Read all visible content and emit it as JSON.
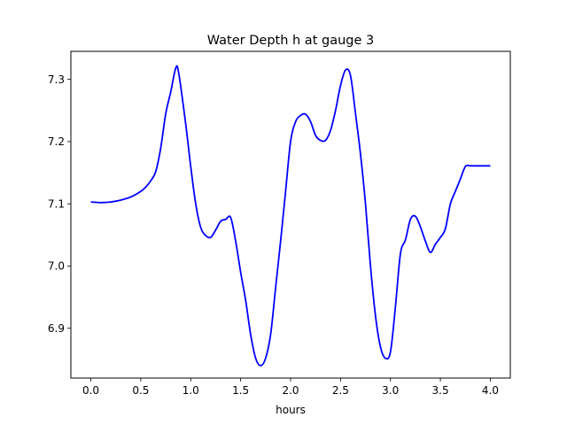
{
  "chart_data": {
    "type": "line",
    "title": "Water Depth h at gauge 3",
    "xlabel": "hours",
    "ylabel": "",
    "xlim": [
      -0.2,
      4.2
    ],
    "ylim": [
      6.82,
      7.345
    ],
    "xticks": [
      0.0,
      0.5,
      1.0,
      1.5,
      2.0,
      2.5,
      3.0,
      3.5,
      4.0
    ],
    "xtick_labels": [
      "0.0",
      "0.5",
      "1.0",
      "1.5",
      "2.0",
      "2.5",
      "3.0",
      "3.5",
      "4.0"
    ],
    "yticks": [
      6.9,
      7.0,
      7.1,
      7.2,
      7.3
    ],
    "ytick_labels": [
      "6.9",
      "7.0",
      "7.1",
      "7.2",
      "7.3"
    ],
    "grid": false,
    "series": [
      {
        "color": "#0000ff",
        "x": [
          0.0,
          0.1,
          0.2,
          0.3,
          0.4,
          0.5,
          0.55,
          0.6,
          0.65,
          0.7,
          0.75,
          0.8,
          0.85,
          0.88,
          0.95,
          1.0,
          1.05,
          1.1,
          1.15,
          1.2,
          1.25,
          1.3,
          1.35,
          1.4,
          1.45,
          1.5,
          1.55,
          1.6,
          1.65,
          1.7,
          1.75,
          1.8,
          1.85,
          1.9,
          1.95,
          2.0,
          2.05,
          2.1,
          2.15,
          2.2,
          2.25,
          2.3,
          2.35,
          2.4,
          2.45,
          2.5,
          2.55,
          2.6,
          2.65,
          2.7,
          2.75,
          2.8,
          2.85,
          2.9,
          2.95,
          3.0,
          3.05,
          3.1,
          3.15,
          3.2,
          3.25,
          3.3,
          3.35,
          3.4,
          3.45,
          3.5,
          3.55,
          3.6,
          3.65,
          3.7,
          3.75,
          3.8,
          3.85,
          3.9,
          3.95,
          4.0
        ],
        "values": [
          7.103,
          7.102,
          7.103,
          7.106,
          7.111,
          7.12,
          7.127,
          7.137,
          7.152,
          7.19,
          7.245,
          7.28,
          7.318,
          7.31,
          7.228,
          7.16,
          7.1,
          7.062,
          7.049,
          7.046,
          7.058,
          7.072,
          7.075,
          7.078,
          7.04,
          6.99,
          6.945,
          6.89,
          6.852,
          6.84,
          6.852,
          6.89,
          6.965,
          7.04,
          7.12,
          7.2,
          7.232,
          7.242,
          7.244,
          7.232,
          7.21,
          7.202,
          7.202,
          7.218,
          7.25,
          7.29,
          7.315,
          7.306,
          7.245,
          7.18,
          7.1,
          7.0,
          6.92,
          6.87,
          6.852,
          6.862,
          6.935,
          7.02,
          7.042,
          7.075,
          7.08,
          7.063,
          7.04,
          7.022,
          7.035,
          7.046,
          7.06,
          7.1,
          7.12,
          7.14,
          7.16,
          7.161,
          7.161,
          7.161,
          7.161,
          7.161
        ]
      }
    ]
  }
}
